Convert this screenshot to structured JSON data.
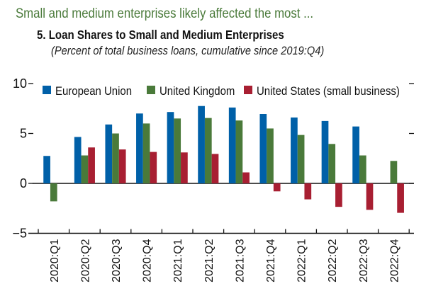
{
  "header": {
    "headline": "Small and medium enterprises likely affected the most ...",
    "title": "5. Loan Shares to Small and Medium Enterprises",
    "subtitle": "(Percent of total business loans, cumulative since 2019:Q4)"
  },
  "chart_data": {
    "type": "bar",
    "title": "5. Loan Shares to Small and Medium Enterprises",
    "subtitle": "(Percent of total business loans, cumulative since 2019:Q4)",
    "xlabel": "",
    "ylabel": "",
    "ylim": [
      -5,
      10
    ],
    "yticks": [
      -5,
      0,
      5,
      10
    ],
    "ytick_labels": [
      "−5",
      "0",
      "5",
      "10"
    ],
    "grid": false,
    "legend_position": "top",
    "categories": [
      "2020:Q1",
      "2020:Q2",
      "2020:Q3",
      "2020:Q4",
      "2021:Q1",
      "2021:Q2",
      "2021:Q3",
      "2021:Q4",
      "2022:Q1",
      "2022:Q2",
      "2022:Q3",
      "2022:Q4"
    ],
    "series": [
      {
        "name": "European Union",
        "color": "#0060a8",
        "values": [
          2.75,
          4.65,
          5.9,
          7.0,
          7.15,
          7.75,
          7.6,
          6.95,
          6.6,
          6.25,
          5.7,
          null
        ]
      },
      {
        "name": "United Kingdom",
        "color": "#4a7a3a",
        "values": [
          -1.8,
          2.8,
          5.0,
          6.0,
          6.5,
          6.55,
          6.3,
          5.5,
          4.85,
          3.95,
          2.8,
          2.25
        ]
      },
      {
        "name": "United States (small business)",
        "color": "#a81f32",
        "values": [
          null,
          3.6,
          3.4,
          3.15,
          3.1,
          2.95,
          1.1,
          -0.8,
          -1.6,
          -2.35,
          -2.65,
          -2.95
        ]
      }
    ]
  }
}
